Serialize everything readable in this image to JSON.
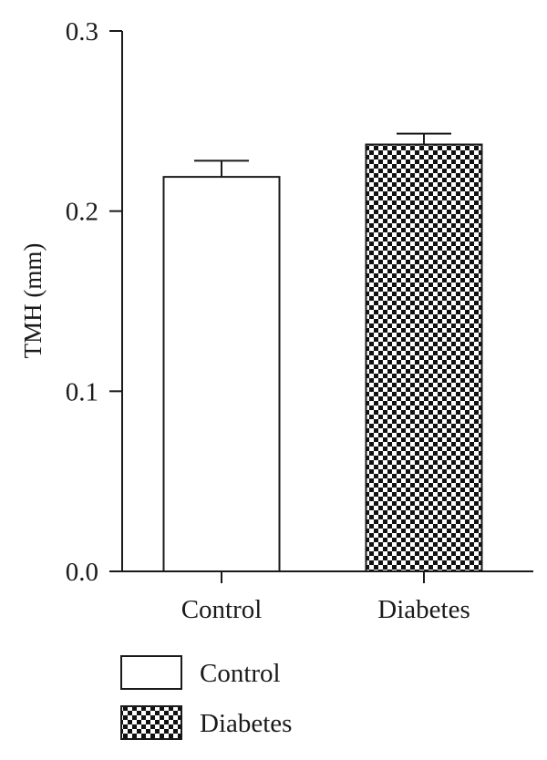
{
  "chart_data": {
    "type": "bar",
    "categories": [
      "Control",
      "Diabetes"
    ],
    "values": [
      0.219,
      0.237
    ],
    "errors": [
      0.009,
      0.006
    ],
    "fills": [
      "white",
      "checker"
    ],
    "ylabel": "TMH (mm)",
    "xlabel": "",
    "ylim": [
      0.0,
      0.3
    ],
    "yticks": [
      "0.0",
      "0.1",
      "0.2",
      "0.3"
    ],
    "grid": false,
    "legend": {
      "position": "bottom-left",
      "entries": [
        "Control",
        "Diabetes"
      ]
    }
  }
}
